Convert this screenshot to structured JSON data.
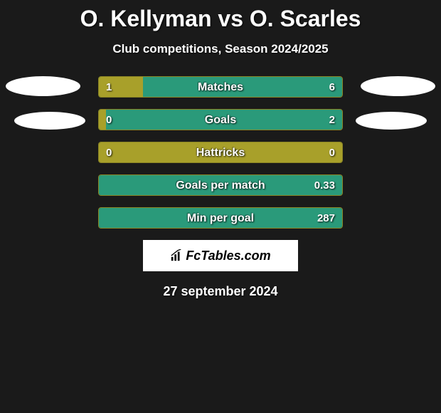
{
  "title": "O. Kellyman vs O. Scarles",
  "subtitle": "Club competitions, Season 2024/2025",
  "date": "27 september 2024",
  "logo_text": "FcTables.com",
  "colors": {
    "left_fill": "#a8a02a",
    "right_fill": "#2a9a7a",
    "border": "#8a8424",
    "background": "#1a1a1a"
  },
  "rows": [
    {
      "label": "Matches",
      "left_value": "1",
      "right_value": "6",
      "left_pct": 18,
      "right_pct": 100,
      "left_color": "#a8a02a",
      "right_color": "#2a9a7a"
    },
    {
      "label": "Goals",
      "left_value": "0",
      "right_value": "2",
      "left_pct": 3,
      "right_pct": 100,
      "left_color": "#a8a02a",
      "right_color": "#2a9a7a"
    },
    {
      "label": "Hattricks",
      "left_value": "0",
      "right_value": "0",
      "left_pct": 100,
      "right_pct": 0,
      "left_color": "#a8a02a",
      "right_color": "#2a9a7a"
    },
    {
      "label": "Goals per match",
      "left_value": "",
      "right_value": "0.33",
      "left_pct": 0,
      "right_pct": 100,
      "left_color": "#a8a02a",
      "right_color": "#2a9a7a"
    },
    {
      "label": "Min per goal",
      "left_value": "",
      "right_value": "287",
      "left_pct": 0,
      "right_pct": 100,
      "left_color": "#a8a02a",
      "right_color": "#2a9a7a"
    }
  ]
}
